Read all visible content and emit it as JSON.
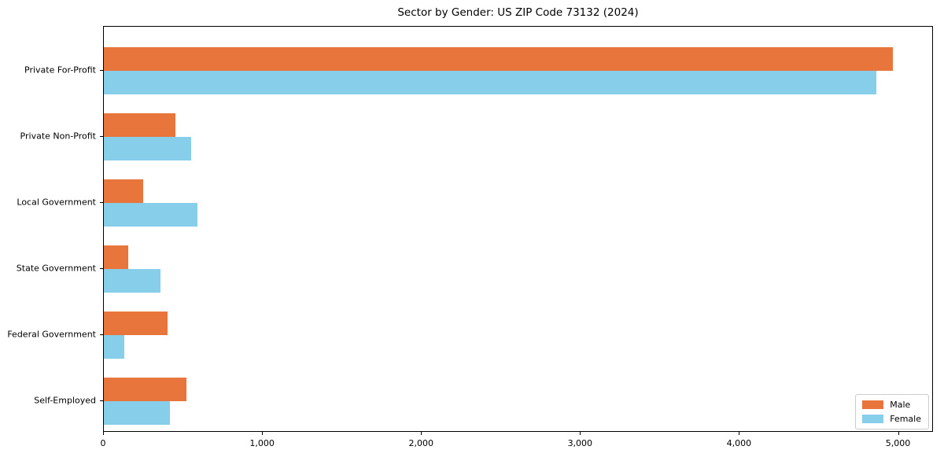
{
  "chart_data": {
    "type": "bar",
    "orientation": "horizontal",
    "title": "Sector by Gender: US ZIP Code 73132 (2024)",
    "categories": [
      "Private For-Profit",
      "Private Non-Profit",
      "Local Government",
      "State Government",
      "Federal Government",
      "Self-Employed"
    ],
    "series": [
      {
        "name": "Male",
        "color": "#E8763C",
        "values": [
          4970,
          450,
          250,
          155,
          400,
          520
        ]
      },
      {
        "name": "Female",
        "color": "#87CEEB",
        "values": [
          4870,
          550,
          590,
          355,
          130,
          415
        ]
      }
    ],
    "xlim": [
      0,
      5220
    ],
    "xticks": [
      {
        "value": 0,
        "label": "0"
      },
      {
        "value": 1000,
        "label": "1,000"
      },
      {
        "value": 2000,
        "label": "2,000"
      },
      {
        "value": 3000,
        "label": "3,000"
      },
      {
        "value": 4000,
        "label": "4,000"
      },
      {
        "value": 5000,
        "label": "5,000"
      }
    ],
    "legend": {
      "position": "lower-right",
      "entries": [
        "Male",
        "Female"
      ]
    },
    "grid": false,
    "background": "#ffffff",
    "text_color": "#000000"
  }
}
